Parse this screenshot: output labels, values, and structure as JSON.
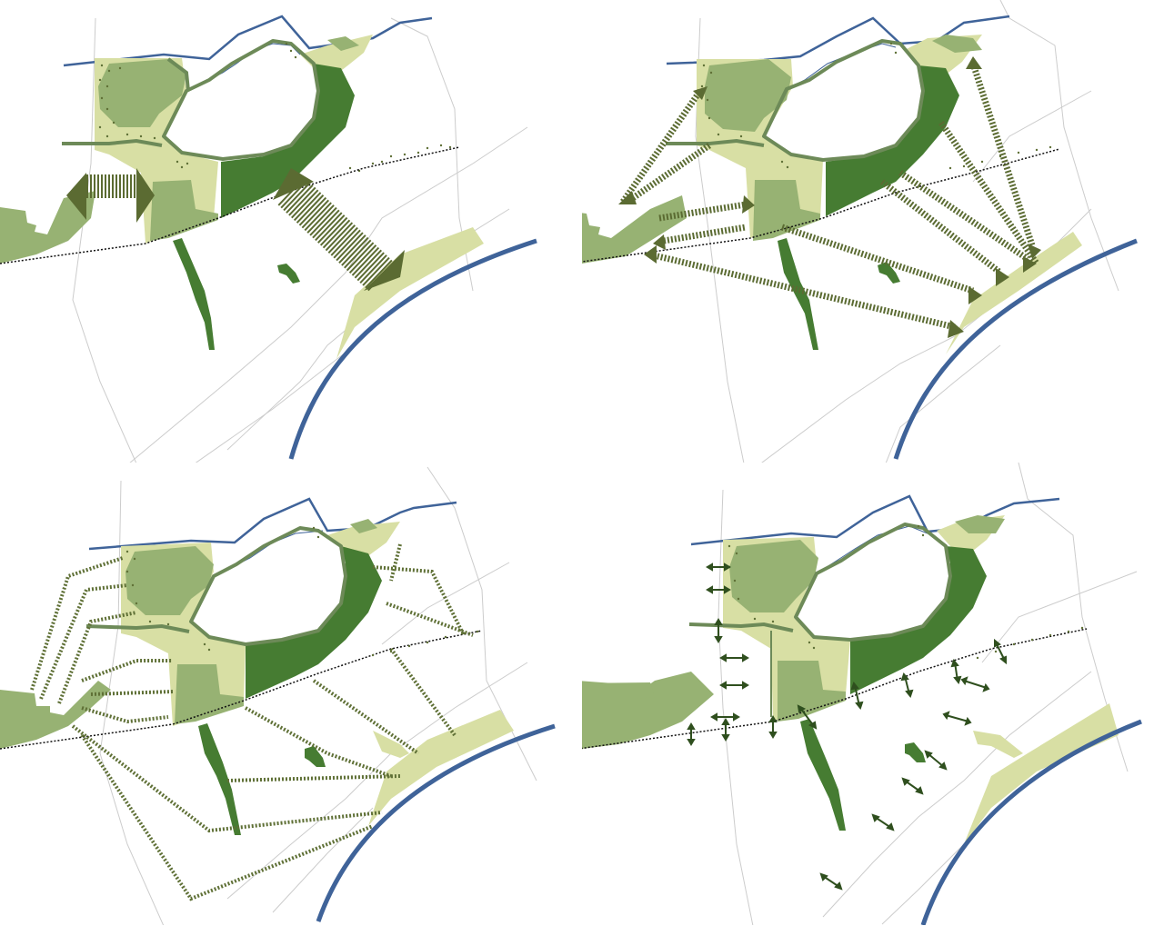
{
  "colors": {
    "water": "#3f6399",
    "forest_dark": "#467c32",
    "green_mid": "#97b273",
    "green_light": "#d8dfa4",
    "arrow_olive": "#5b6b32",
    "dots": "#5f7036",
    "roads": "#cccccc",
    "park_outline": "#6d8a58",
    "railway": "#111111"
  },
  "icons": {
    "connection_arrow": "double-arrow-icon",
    "tree_dots": "tree-dot-pattern"
  },
  "panels": [
    {
      "id": "tl",
      "theme": "broad green corridors"
    },
    {
      "id": "tr",
      "theme": "multiple corridor links"
    },
    {
      "id": "bl",
      "theme": "dotted path network"
    },
    {
      "id": "br",
      "theme": "crossing points"
    }
  ]
}
